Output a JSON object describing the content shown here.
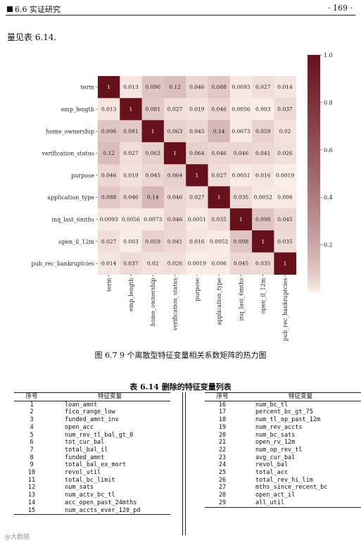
{
  "header": {
    "section": "6.6 实证研究",
    "page": "· 169 ·"
  },
  "intro": "量见表 6.14.",
  "chart_data": {
    "type": "heatmap",
    "labels": [
      "term",
      "emp_length",
      "home_ownership",
      "verification_status",
      "purpose",
      "application_type",
      "inq_last_6mths",
      "open_il_12m",
      "pub_rec_bankruptcies"
    ],
    "matrix": [
      [
        "1",
        "0.013",
        "0.096",
        "0.12",
        "0.046",
        "0.088",
        "0.0093",
        "0.027",
        "0.014"
      ],
      [
        "0.013",
        "1",
        "0.081",
        "0.027",
        "0.019",
        "0.046",
        "0.0056",
        "0.003",
        "0.037"
      ],
      [
        "0.096",
        "0.081",
        "1",
        "0.063",
        "0.045",
        "0.14",
        "0.0073",
        "0.059",
        "0.02"
      ],
      [
        "0.12",
        "0.027",
        "0.063",
        "1",
        "0.064",
        "0.046",
        "0.046",
        "0.041",
        "0.026"
      ],
      [
        "0.046",
        "0.019",
        "0.045",
        "0.064",
        "1",
        "0.027",
        "0.0051",
        "0.016",
        "0.0019"
      ],
      [
        "0.088",
        "0.046",
        "0.14",
        "0.046",
        "0.027",
        "1",
        "0.035",
        "0.0052",
        "0.006"
      ],
      [
        "0.0093",
        "0.0056",
        "0.0073",
        "0.046",
        "0.0051",
        "0.035",
        "1",
        "0.098",
        "0.045"
      ],
      [
        "0.027",
        "0.003",
        "0.059",
        "0.041",
        "0.016",
        "0.0052",
        "0.098",
        "1",
        "0.035"
      ],
      [
        "0.014",
        "0.037",
        "0.02",
        "0.026",
        "0.0019",
        "0.006",
        "0.045",
        "0.035",
        "1"
      ]
    ],
    "colorbar": {
      "min": 0,
      "max": 1,
      "ticks": [
        "0.2",
        "0.4",
        "0.6",
        "0.8",
        "1.0"
      ]
    },
    "colors": {
      "low": "#fdf0ea",
      "high": "#67111c"
    }
  },
  "figure_caption": "图 6.7 9 个离散型特征变量相关系数矩阵的热力图",
  "table_caption": "表 6.14 删除的特征变量列表",
  "table": {
    "headers": [
      "序号",
      "特征变量"
    ],
    "left": [
      [
        "1",
        "loan_amnt"
      ],
      [
        "2",
        "fico_range_low"
      ],
      [
        "3",
        "funded_amnt_inv"
      ],
      [
        "4",
        "open_acc"
      ],
      [
        "5",
        "num_rev_tl_bal_gt_0"
      ],
      [
        "6",
        "tot_cur_bal"
      ],
      [
        "7",
        "total_bal_il"
      ],
      [
        "8",
        "funded_amnt"
      ],
      [
        "9",
        "total_bal_ex_mort"
      ],
      [
        "10",
        "revol_util"
      ],
      [
        "11",
        "total_bc_limit"
      ],
      [
        "12",
        "num_sats"
      ],
      [
        "13",
        "num_actv_bc_tl"
      ],
      [
        "14",
        "acc_open_past_24mths"
      ],
      [
        "15",
        "num_accts_ever_120_pd"
      ]
    ],
    "right": [
      [
        "16",
        "num_bc_tl"
      ],
      [
        "17",
        "percent_bc_gt_75"
      ],
      [
        "18",
        "num_tl_op_past_12m"
      ],
      [
        "19",
        "num_rev_accts"
      ],
      [
        "20",
        "num_bc_sats"
      ],
      [
        "21",
        "open_rv_12m"
      ],
      [
        "22",
        "num_op_rev_tl"
      ],
      [
        "23",
        "avg_cur_bal"
      ],
      [
        "24",
        "revol_bal"
      ],
      [
        "25",
        "total_acc"
      ],
      [
        "26",
        "total_rev_hi_lim"
      ],
      [
        "27",
        "mths_since_recent_bc"
      ],
      [
        "28",
        "open_act_il"
      ],
      [
        "29",
        "all_util"
      ]
    ]
  },
  "watermark": "@大数据"
}
